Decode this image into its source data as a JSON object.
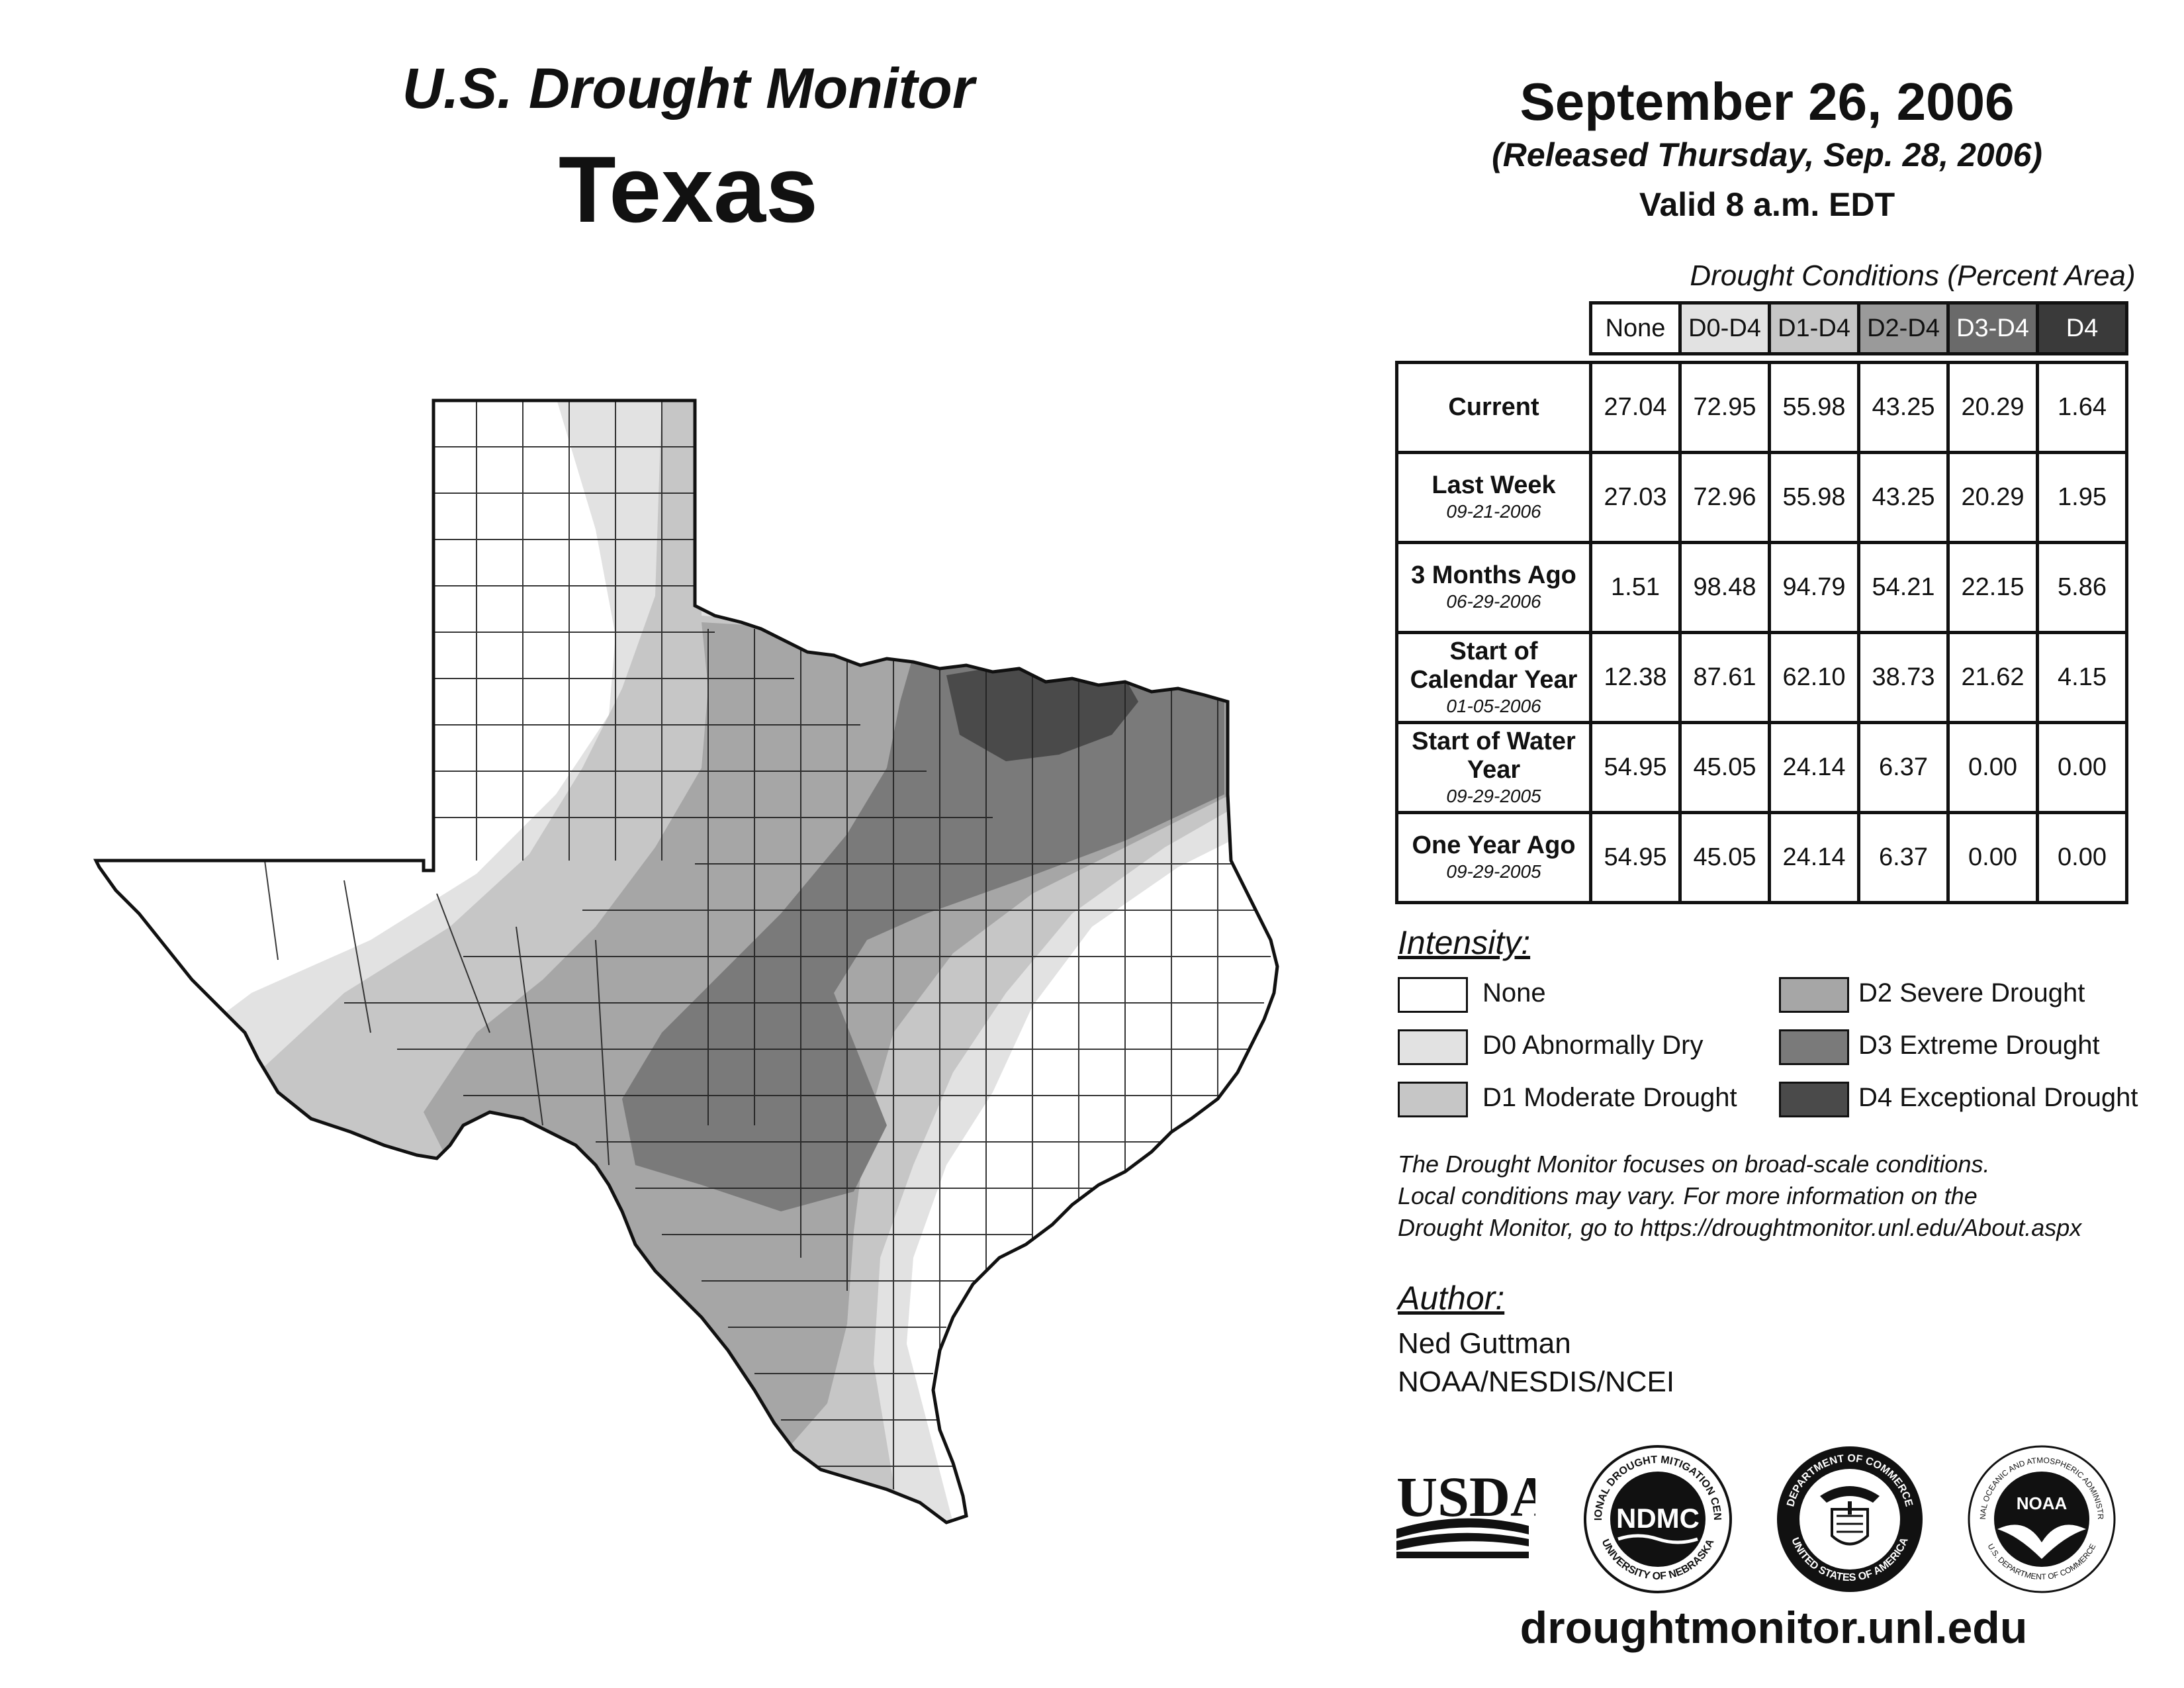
{
  "header": {
    "subtitle": "U.S. Drought Monitor",
    "state": "Texas"
  },
  "date": {
    "main": "September 26, 2006",
    "released": "(Released Thursday, Sep. 28, 2006)",
    "valid": "Valid 8 a.m. EDT"
  },
  "table": {
    "caption": "Drought Conditions (Percent Area)",
    "columns": [
      "None",
      "D0-D4",
      "D1-D4",
      "D2-D4",
      "D3-D4",
      "D4"
    ],
    "rows": [
      {
        "label": "Current",
        "date": "",
        "values": [
          "27.04",
          "72.95",
          "55.98",
          "43.25",
          "20.29",
          "1.64"
        ]
      },
      {
        "label": "Last Week",
        "date": "09-21-2006",
        "values": [
          "27.03",
          "72.96",
          "55.98",
          "43.25",
          "20.29",
          "1.95"
        ]
      },
      {
        "label": "3 Months Ago",
        "date": "06-29-2006",
        "values": [
          "1.51",
          "98.48",
          "94.79",
          "54.21",
          "22.15",
          "5.86"
        ]
      },
      {
        "label": "Start of Calendar Year",
        "date": "01-05-2006",
        "values": [
          "12.38",
          "87.61",
          "62.10",
          "38.73",
          "21.62",
          "4.15"
        ]
      },
      {
        "label": "Start of Water Year",
        "date": "09-29-2005",
        "values": [
          "54.95",
          "45.05",
          "24.14",
          "6.37",
          "0.00",
          "0.00"
        ]
      },
      {
        "label": "One Year Ago",
        "date": "09-29-2005",
        "values": [
          "54.95",
          "45.05",
          "24.14",
          "6.37",
          "0.00",
          "0.00"
        ]
      }
    ]
  },
  "legend": {
    "title": "Intensity:",
    "items": [
      {
        "label": "None",
        "color": "#ffffff"
      },
      {
        "label": "D0 Abnormally Dry",
        "color": "#e2e2e2"
      },
      {
        "label": "D1 Moderate Drought",
        "color": "#c6c6c6"
      },
      {
        "label": "D2 Severe Drought",
        "color": "#a6a6a6"
      },
      {
        "label": "D3 Extreme Drought",
        "color": "#7a7a7a"
      },
      {
        "label": "D4 Exceptional Drought",
        "color": "#4a4a4a"
      }
    ]
  },
  "note": {
    "line1": "The Drought Monitor focuses on broad-scale conditions.",
    "line2": "Local conditions may vary. For more information on the",
    "line3": "Drought Monitor, go to https://droughtmonitor.unl.edu/About.aspx"
  },
  "author": {
    "title": "Author:",
    "name": "Ned Guttman",
    "org": "NOAA/NESDIS/NCEI"
  },
  "logos": {
    "usda": "USDA",
    "ndmc": "NDMC",
    "ndmc_ring_top": "NATIONAL DROUGHT MITIGATION CENTER",
    "ndmc_ring_bottom": "UNIVERSITY OF NEBRASKA",
    "doc_ring_top": "DEPARTMENT OF COMMERCE",
    "doc_ring_bottom": "UNITED STATES OF AMERICA",
    "noaa": "NOAA",
    "noaa_ring_top": "NATIONAL OCEANIC AND ATMOSPHERIC ADMINISTRATION",
    "noaa_ring_bottom": "U.S. DEPARTMENT OF COMMERCE"
  },
  "footer": {
    "url": "droughtmonitor.unl.edu"
  },
  "map": {
    "colors": {
      "none": "#ffffff",
      "d0": "#e2e2e2",
      "d1": "#c6c6c6",
      "d2": "#a6a6a6",
      "d3": "#7a7a7a",
      "d4": "#4a4a4a"
    }
  }
}
